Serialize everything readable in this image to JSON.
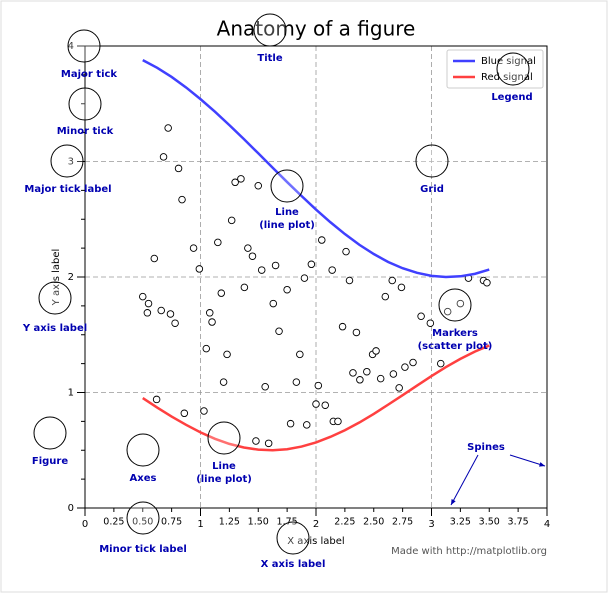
{
  "chart_data": {
    "type": "line",
    "title": "Anatomy of a figure",
    "xlabel": "X axis label",
    "ylabel": "Y axis label",
    "footer": "Made with http://matplotlib.org",
    "legend": "upper right",
    "grid": true,
    "xlim": [
      0,
      4
    ],
    "ylim": [
      0,
      4
    ],
    "xticks": [
      0,
      1,
      2,
      3,
      4
    ],
    "yticks": [
      0,
      1,
      2,
      3,
      4
    ],
    "xminorticks": [
      0.25,
      {
        "value": 0.5,
        "label": "0.50"
      },
      0.75,
      1.25,
      {
        "value": 1.5,
        "label": "1.50"
      },
      1.75,
      2.25,
      {
        "value": 2.5,
        "label": "2.50"
      },
      2.75,
      3.25,
      {
        "value": 3.5,
        "label": "3.50"
      },
      3.75
    ],
    "yminorticks": [
      0.25,
      0.5,
      0.75,
      1.25,
      1.5,
      1.75,
      2.25,
      2.5,
      2.75,
      3.25,
      3.5,
      3.75
    ],
    "x": [
      0.5,
      0.625,
      0.75,
      0.875,
      1.0,
      1.125,
      1.25,
      1.375,
      1.5,
      1.625,
      1.75,
      1.875,
      2.0,
      2.125,
      2.25,
      2.375,
      2.5,
      2.625,
      2.75,
      2.875,
      3.0,
      3.125,
      3.25,
      3.375,
      3.5
    ],
    "series": [
      {
        "name": "Blue signal",
        "color": "#4040ff",
        "values": [
          3.878,
          3.811,
          3.732,
          3.641,
          3.54,
          3.431,
          3.315,
          3.195,
          3.071,
          2.946,
          2.822,
          2.701,
          2.584,
          2.474,
          2.372,
          2.279,
          2.199,
          2.13,
          2.076,
          2.036,
          2.01,
          2.0,
          2.006,
          2.027,
          2.064
        ]
      },
      {
        "name": "Red signal",
        "color": "#ff4040",
        "values": [
          0.952,
          0.87,
          0.792,
          0.72,
          0.655,
          0.599,
          0.555,
          0.524,
          0.505,
          0.5,
          0.509,
          0.532,
          0.568,
          0.616,
          0.673,
          0.74,
          0.814,
          0.895,
          0.977,
          1.06,
          1.142,
          1.22,
          1.291,
          1.354,
          1.407
        ]
      }
    ],
    "scatter": {
      "x": [
        0.72,
        0.68,
        0.81,
        0.84,
        0.6,
        0.5,
        0.55,
        0.54,
        0.66,
        0.74,
        0.78,
        0.62,
        0.86,
        0.94,
        0.99,
        1.03,
        1.05,
        1.08,
        1.1,
        1.15,
        1.18,
        1.2,
        1.23,
        1.27,
        1.3,
        1.35,
        1.38,
        1.41,
        1.45,
        1.5,
        1.53,
        1.56,
        1.63,
        1.65,
        1.68,
        1.48,
        1.59,
        1.75,
        1.78,
        1.83,
        1.86,
        1.9,
        1.92,
        1.96,
        2.0,
        2.02,
        2.05,
        2.08,
        2.14,
        2.15,
        2.19,
        2.26,
        2.29,
        2.23,
        2.35,
        2.32,
        2.38,
        2.44,
        2.49,
        2.52,
        2.56,
        2.6,
        2.67,
        2.72,
        2.77,
        2.84,
        2.91,
        2.99,
        3.08,
        3.14,
        3.25,
        3.32,
        3.45,
        3.48,
        2.66,
        2.74
      ],
      "y": [
        3.29,
        3.04,
        2.94,
        2.67,
        2.16,
        1.83,
        1.77,
        1.69,
        1.71,
        1.68,
        1.6,
        0.94,
        0.82,
        2.25,
        2.07,
        0.84,
        1.38,
        1.69,
        1.61,
        2.3,
        1.86,
        1.09,
        1.33,
        2.49,
        2.82,
        2.85,
        1.91,
        2.25,
        2.18,
        2.79,
        2.06,
        1.05,
        1.77,
        2.1,
        1.53,
        0.58,
        0.56,
        1.89,
        0.73,
        1.09,
        1.33,
        1.99,
        0.72,
        2.11,
        0.9,
        1.06,
        2.32,
        0.89,
        2.06,
        0.75,
        0.75,
        2.22,
        1.97,
        1.57,
        1.52,
        1.17,
        1.11,
        1.18,
        1.33,
        1.36,
        1.12,
        1.83,
        1.16,
        1.04,
        1.22,
        1.26,
        1.66,
        1.6,
        1.25,
        1.7,
        1.77,
        1.99,
        1.97,
        1.95,
        1.97,
        1.91
      ]
    },
    "annotations": [
      [
        "Major tick"
      ],
      [
        "Minor tick"
      ],
      [
        "Major tick label"
      ],
      [
        "Y axis label"
      ],
      [
        "Title"
      ],
      [
        "Line",
        "(line plot)"
      ],
      [
        "Grid"
      ],
      [
        "Legend"
      ],
      [
        "Markers",
        "(scatter plot)"
      ],
      [
        "Line",
        "(line plot)"
      ],
      [
        "Figure"
      ],
      [
        "Axes"
      ],
      [
        "Minor tick label"
      ],
      [
        "X axis label"
      ],
      [
        "Spines"
      ]
    ]
  }
}
